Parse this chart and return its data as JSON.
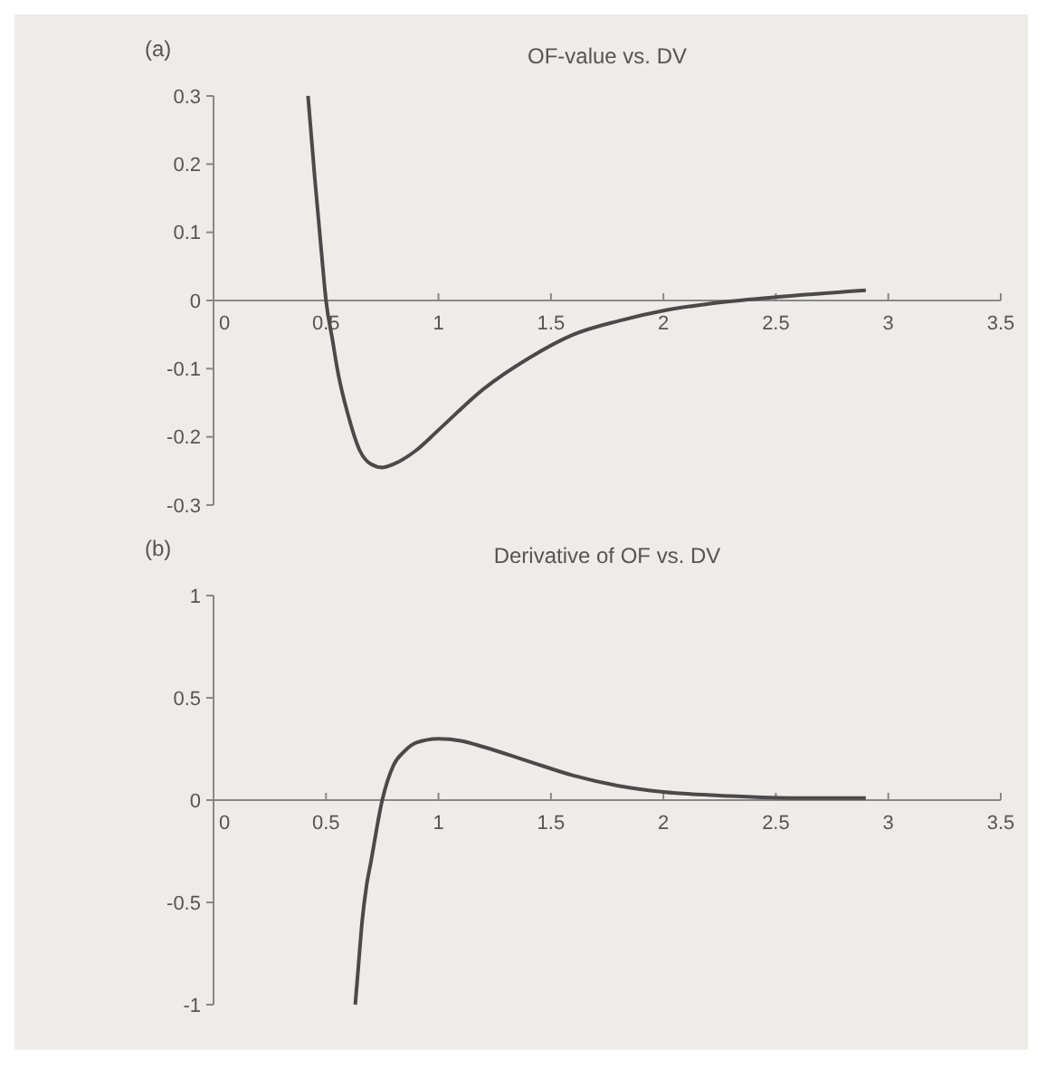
{
  "chart_data": [
    {
      "type": "line",
      "title": "OF-value vs. DV",
      "annotations": [
        "(a)"
      ],
      "color": "#4a4a4a",
      "line_style": "solid",
      "x": [
        0.42,
        0.45,
        0.48,
        0.5,
        0.53,
        0.55,
        0.6,
        0.65,
        0.7,
        0.75,
        0.8,
        0.9,
        1.0,
        1.2,
        1.4,
        1.6,
        1.8,
        2.0,
        2.2,
        2.5,
        2.9
      ],
      "values": [
        0.3,
        0.18,
        0.07,
        0,
        -0.06,
        -0.1,
        -0.17,
        -0.22,
        -0.24,
        -0.245,
        -0.24,
        -0.22,
        -0.19,
        -0.13,
        -0.085,
        -0.05,
        -0.03,
        -0.015,
        -0.005,
        0.005,
        0.015
      ],
      "xlim": [
        0,
        3.5
      ],
      "ylim": [
        -0.3,
        0.3
      ],
      "xticks": [
        0,
        0.5,
        1,
        1.5,
        2,
        2.5,
        3,
        3.5
      ],
      "yticks": [
        -0.3,
        -0.2,
        -0.1,
        0,
        0.1,
        0.2,
        0.3
      ],
      "grid": false
    },
    {
      "type": "line",
      "title": "Derivative of OF vs. DV",
      "annotations": [
        "(b)"
      ],
      "color": "#4a4a4a",
      "line_style": "solid",
      "x": [
        0.63,
        0.645,
        0.66,
        0.68,
        0.7,
        0.75,
        0.8,
        0.85,
        0.9,
        1.0,
        1.1,
        1.2,
        1.4,
        1.6,
        1.8,
        2.0,
        2.3,
        2.6,
        2.9
      ],
      "values": [
        -1,
        -0.8,
        -0.6,
        -0.42,
        -0.3,
        0,
        0.17,
        0.24,
        0.28,
        0.3,
        0.29,
        0.26,
        0.19,
        0.12,
        0.07,
        0.04,
        0.02,
        0.01,
        0.01
      ],
      "xlim": [
        0,
        3.5
      ],
      "ylim": [
        -1,
        1
      ],
      "xticks": [
        0,
        0.5,
        1,
        1.5,
        2,
        2.5,
        3,
        3.5
      ],
      "yticks": [
        -1,
        -0.5,
        0,
        0.5,
        1
      ],
      "grid": false
    }
  ]
}
